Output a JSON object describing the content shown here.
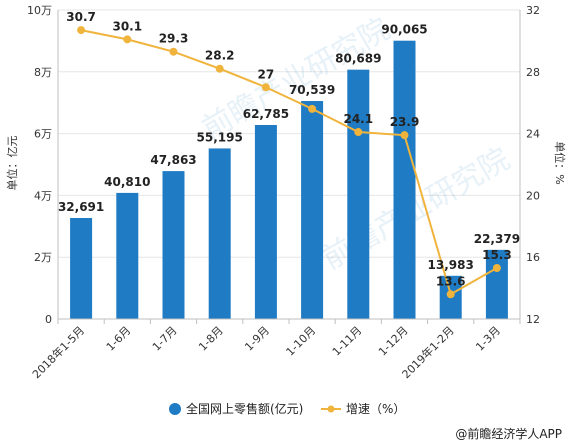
{
  "chart_data": {
    "type": "bar",
    "categories": [
      "2018年1-5月",
      "1-6月",
      "1-7月",
      "1-8月",
      "1-9月",
      "1-10月",
      "1-11月",
      "1-12月",
      "2019年1-2月",
      "1-3月"
    ],
    "series": [
      {
        "name": "全国网上零售额(亿元)",
        "type": "bar",
        "axis": "left",
        "color": "#1F7BC4",
        "values": [
          32691,
          40810,
          47863,
          55195,
          62785,
          70539,
          80689,
          90065,
          13983,
          22379
        ],
        "labels": [
          "32,691",
          "40,810",
          "47,863",
          "55,195",
          "62,785",
          "70,539",
          "80,689",
          "90,065",
          "13,983",
          "22,379"
        ]
      },
      {
        "name": "增速（%）",
        "type": "line",
        "axis": "right",
        "color": "#F0B43C",
        "values": [
          30.7,
          30.1,
          29.3,
          28.2,
          27,
          25.6,
          24.1,
          23.9,
          13.6,
          15.3
        ],
        "labels": [
          "30.7",
          "30.1",
          "29.3",
          "28.2",
          "27",
          "",
          "24.1",
          "23.9",
          "13.6",
          "15.3"
        ]
      }
    ],
    "ylabel_left": "单位：亿元",
    "ylabel_right": "单位：%",
    "ylim_left": [
      0,
      100000
    ],
    "yticks_left": [
      0,
      20000,
      40000,
      60000,
      80000,
      100000
    ],
    "yticklabels_left": [
      "0",
      "2万",
      "4万",
      "6万",
      "8万",
      "10万"
    ],
    "ylim_right": [
      12,
      32
    ],
    "yticks_right": [
      12,
      16,
      20,
      24,
      28,
      32
    ],
    "yticklabels_right": [
      "12",
      "16",
      "20",
      "24",
      "28",
      "32"
    ],
    "grid": "horizontal",
    "legend_position": "bottom"
  },
  "source": "@前瞻经济学人APP",
  "watermark": "前瞻产业研究院"
}
